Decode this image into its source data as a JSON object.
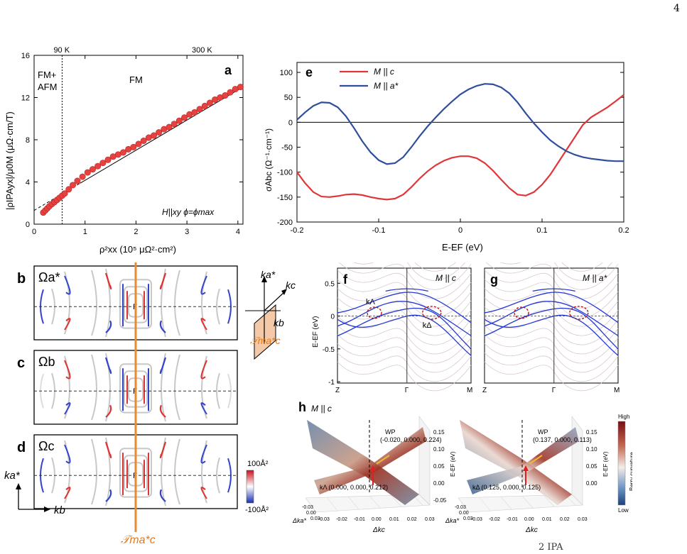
{
  "page_number": "4",
  "caption_fragment": "2            IPA",
  "panels": {
    "a": {
      "label": "a",
      "region_left": "FM+",
      "region_left2": "AFM",
      "region_right": "FM",
      "temp_low": "90 K",
      "temp_high": "300 K",
      "condition": "H||xy   ϕ=ϕmax",
      "xlabel": "ρ²xx (10⁵ μΩ²·cm²)",
      "ylabel": "|ρIPAyx|/μ0M (μΩ·cm/T)"
    },
    "e": {
      "label": "e",
      "legend": [
        "M || c",
        "M || a*"
      ],
      "xlabel": "E-EF (eV)",
      "ylabel": "σAbc (Ω⁻¹·cm⁻¹)"
    },
    "b": {
      "label": "b",
      "symbol": "Ωa*",
      "gamma": "Γ"
    },
    "c": {
      "label": "c",
      "symbol": "Ωb",
      "gamma": "Γ"
    },
    "d": {
      "label": "d",
      "symbol": "Ωc",
      "gamma": "Γ"
    },
    "colorbar_bd": {
      "high": "100Å²",
      "low": "-100Å²"
    },
    "axes_bd": {
      "y": "ka*",
      "x": "kb",
      "mirror": "𝒯ma*c"
    },
    "inset": {
      "ka": "ka*",
      "kc": "kc",
      "kb": "kb",
      "mirror": "𝒯ma*c"
    },
    "f": {
      "label": "f",
      "title": "M || c",
      "ylabel": "E-EF (eV)",
      "ticks_x": [
        "Z",
        "Γ",
        "M"
      ],
      "ticks_y": [
        "0.5",
        "0",
        "-0.5",
        "-1"
      ],
      "k_lambda": "kΛ",
      "k_delta": "kΔ"
    },
    "g": {
      "label": "g",
      "title": "M || a*",
      "ticks_x": [
        "Z",
        "Γ",
        "M"
      ]
    },
    "h": {
      "label": "h",
      "title": "M || c",
      "left": {
        "wp": "WP",
        "wp_coord": "(-0.020, 0.000, 0.224)",
        "k_point": "kΛ (0.000, 0.000, 0.212)",
        "zlabel": "E-EF (eV)",
        "xlabel": "Δkc",
        "ylabel": "Δka*",
        "zticks": [
          "0.15",
          "0.10",
          "0.05",
          "0.00",
          "-0.05"
        ]
      },
      "right": {
        "wp": "WP",
        "wp_coord": "(0.137, 0.000, 0.113)",
        "k_point": "kΔ (0.125, 0.000, 0.125)",
        "zlabel": "E-EF (eV)",
        "xlabel": "Δkc",
        "ylabel": "Δka*",
        "zticks": [
          "0.15",
          "0.10",
          "0.05",
          "0.00"
        ]
      },
      "colorbar": {
        "high": "High",
        "low": "Low",
        "label": "Berry curvature"
      }
    }
  },
  "chart_data": [
    {
      "type": "scatter",
      "panel": "a",
      "xlim": [
        0,
        4.1
      ],
      "ylim": [
        0,
        16
      ],
      "xticks": [
        0,
        1,
        2,
        3,
        4
      ],
      "yticks": [
        0,
        4,
        8,
        12,
        16
      ],
      "x": [
        0.18,
        0.22,
        0.26,
        0.3,
        0.35,
        0.4,
        0.45,
        0.5,
        0.55,
        0.6,
        0.68,
        0.76,
        0.85,
        0.95,
        1.05,
        1.15,
        1.25,
        1.35,
        1.45,
        1.55,
        1.65,
        1.75,
        1.85,
        1.95,
        2.05,
        2.15,
        2.25,
        2.35,
        2.45,
        2.55,
        2.65,
        2.75,
        2.85,
        2.95,
        3.05,
        3.15,
        3.25,
        3.35,
        3.45,
        3.55,
        3.65,
        3.75,
        3.85,
        3.95,
        4.05
      ],
      "y": [
        1.1,
        1.3,
        1.5,
        1.7,
        1.9,
        2.1,
        2.3,
        2.5,
        2.7,
        2.9,
        3.3,
        3.7,
        4.1,
        4.5,
        4.9,
        5.2,
        5.5,
        5.8,
        6.1,
        6.4,
        6.6,
        6.8,
        7.1,
        7.3,
        7.6,
        7.9,
        8.2,
        8.4,
        8.7,
        9.0,
        9.2,
        9.5,
        9.8,
        10.1,
        10.4,
        10.6,
        10.9,
        11.2,
        11.5,
        11.8,
        12.0,
        12.2,
        12.5,
        12.8,
        13.0
      ],
      "fit": {
        "x": [
          0,
          4.1
        ],
        "y": [
          1.3,
          13.0
        ]
      },
      "vline_x": 0.55
    },
    {
      "type": "line",
      "panel": "e",
      "xlim": [
        -0.2,
        0.2
      ],
      "ylim": [
        -200,
        120
      ],
      "xticks": [
        -0.2,
        -0.1,
        0,
        0.1,
        0.2
      ],
      "xticklabels": [
        "-0.2",
        "-0.1",
        "0",
        "0.1",
        "0.2"
      ],
      "yticks": [
        -200,
        -150,
        -100,
        -50,
        0,
        50,
        100
      ],
      "series": [
        {
          "name": "M || c",
          "color": "#e0363a",
          "x": [
            -0.2,
            -0.19,
            -0.18,
            -0.17,
            -0.16,
            -0.15,
            -0.14,
            -0.13,
            -0.12,
            -0.11,
            -0.1,
            -0.09,
            -0.08,
            -0.07,
            -0.06,
            -0.05,
            -0.04,
            -0.03,
            -0.02,
            -0.01,
            0,
            0.01,
            0.02,
            0.03,
            0.04,
            0.05,
            0.06,
            0.07,
            0.08,
            0.09,
            0.1,
            0.11,
            0.12,
            0.13,
            0.14,
            0.15,
            0.16,
            0.17,
            0.18,
            0.19,
            0.2
          ],
          "y": [
            -100,
            -122,
            -140,
            -149,
            -150,
            -148,
            -145,
            -144,
            -146,
            -150,
            -153,
            -155,
            -153,
            -145,
            -130,
            -113,
            -98,
            -86,
            -77,
            -71,
            -68,
            -68,
            -72,
            -82,
            -97,
            -115,
            -132,
            -145,
            -147,
            -140,
            -125,
            -105,
            -80,
            -55,
            -30,
            -5,
            10,
            20,
            30,
            42,
            55
          ]
        },
        {
          "name": "M || a*",
          "color": "#2f4f9a",
          "x": [
            -0.2,
            -0.19,
            -0.18,
            -0.17,
            -0.16,
            -0.15,
            -0.14,
            -0.13,
            -0.12,
            -0.11,
            -0.1,
            -0.09,
            -0.08,
            -0.07,
            -0.06,
            -0.05,
            -0.04,
            -0.03,
            -0.02,
            -0.01,
            0,
            0.01,
            0.02,
            0.03,
            0.04,
            0.05,
            0.06,
            0.07,
            0.08,
            0.09,
            0.1,
            0.11,
            0.12,
            0.13,
            0.14,
            0.15,
            0.16,
            0.17,
            0.18,
            0.19,
            0.2
          ],
          "y": [
            5,
            20,
            33,
            40,
            39,
            30,
            12,
            -12,
            -38,
            -60,
            -76,
            -84,
            -82,
            -70,
            -50,
            -28,
            -8,
            10,
            27,
            42,
            56,
            66,
            73,
            77,
            76,
            70,
            58,
            40,
            18,
            -2,
            -20,
            -36,
            -48,
            -58,
            -65,
            -70,
            -73,
            -75,
            -77,
            -78,
            -78
          ]
        }
      ]
    }
  ]
}
